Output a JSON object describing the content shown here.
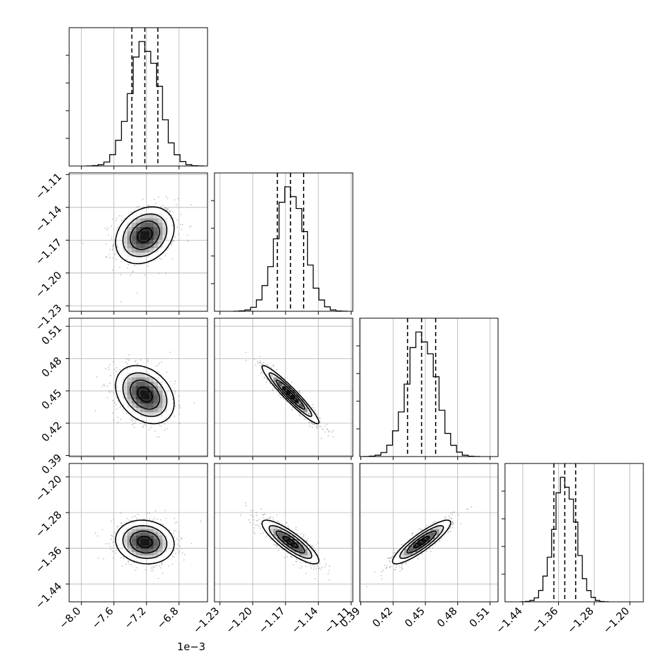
{
  "chart_data": {
    "type": "corner",
    "offset_label": "1e−3",
    "parameters": [
      {
        "range": [
          -0.00815,
          -0.00645
        ],
        "ticks": [
          -0.008,
          -0.0076,
          -0.0072,
          -0.0068
        ],
        "tick_labels": [
          "−8.0",
          "−7.6",
          "−7.2",
          "−6.8"
        ],
        "median": -0.00722,
        "sigma": 0.00018,
        "quantiles": [
          -0.00738,
          -0.00722,
          -0.00706
        ]
      },
      {
        "range": [
          -1.235,
          -1.1085
        ],
        "ticks": [
          -1.23,
          -1.2,
          -1.17,
          -1.14,
          -1.11
        ],
        "tick_labels": [
          "−1.23",
          "−1.20",
          "−1.17",
          "−1.14",
          "−1.11"
        ],
        "median": -1.1655,
        "sigma": 0.013,
        "quantiles": [
          -1.1775,
          -1.1655,
          -1.1535
        ]
      },
      {
        "range": [
          0.389,
          0.5175
        ],
        "ticks": [
          0.39,
          0.42,
          0.45,
          0.48,
          0.51
        ],
        "tick_labels": [
          "0.39",
          "0.42",
          "0.45",
          "0.48",
          "0.51"
        ],
        "median": 0.4465,
        "sigma": 0.0135,
        "quantiles": [
          0.4335,
          0.4465,
          0.4595
        ]
      },
      {
        "range": [
          -1.48,
          -1.17
        ],
        "ticks": [
          -1.44,
          -1.36,
          -1.28,
          -1.2
        ],
        "tick_labels": [
          "−1.44",
          "−1.36",
          "−1.28",
          "−1.20"
        ],
        "median": -1.346,
        "sigma": 0.0245,
        "quantiles": [
          -1.3705,
          -1.346,
          -1.3215
        ]
      }
    ],
    "correlations": {
      "1-0": 0.25,
      "2-0": -0.3,
      "2-1": -0.95,
      "3-0": -0.1,
      "3-1": -0.85,
      "3-2": 0.88
    },
    "contour_levels_sigma": [
      0.5,
      1.0,
      1.5,
      2.0
    ],
    "grid": true,
    "histogram_bins": 20
  }
}
